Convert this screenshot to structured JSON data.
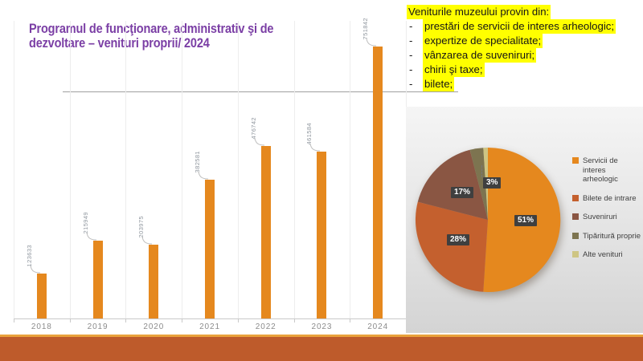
{
  "slide": {
    "title": "Programul de funcţionare, administrativ şi de dezvoltare – venituri proprii/ 2024"
  },
  "notes": {
    "heading": "Veniturile muzeului provin din:",
    "bullet_marker": "-",
    "bullets": [
      "prestări de servicii de interes arheologic;",
      "expertize de specialitate;",
      "vânzarea de suveniruri;",
      "chirii şi taxe;",
      "bilete;"
    ]
  },
  "chart_data": [
    {
      "type": "bar",
      "title": "",
      "categories": [
        "2018",
        "2019",
        "2020",
        "2021",
        "2022",
        "2023",
        "2024"
      ],
      "values": [
        123633,
        215949,
        203975,
        382581,
        476742,
        461584,
        751842
      ],
      "data_labels": [
        "123633",
        "215949",
        "203975",
        "382581",
        "476742",
        "461584",
        "751842"
      ],
      "bar_color": "#e5881e",
      "xlabel": "",
      "ylabel": "",
      "ylim": [
        0,
        800000
      ],
      "grid": "vertical-category-separators",
      "legend_position": "none"
    },
    {
      "type": "pie",
      "title": "",
      "legend_position": "right",
      "slices": [
        {
          "label": "Servicii de interes arheologic",
          "value": 51,
          "display": "51%",
          "color": "#e5881e"
        },
        {
          "label": "Bilete de intrare",
          "value": 28,
          "display": "28%",
          "color": "#c4602e"
        },
        {
          "label": "Suveniruri",
          "value": 17,
          "display": "17%",
          "color": "#8a5643"
        },
        {
          "label": "Tipăritură proprie",
          "value": 3,
          "display": "3%",
          "color": "#7d7450"
        },
        {
          "label": "Alte venituri",
          "value": 1,
          "display": "",
          "color": "#cec583"
        }
      ]
    }
  ],
  "theme": {
    "accent_orange": "#e5881e",
    "title_purple": "#7b3fa5",
    "highlight_yellow": "#ffff00",
    "footer_rust": "#be5b2b",
    "footer_gold": "#e9a23b",
    "percent_badge_bg": "#3f3f3f"
  }
}
